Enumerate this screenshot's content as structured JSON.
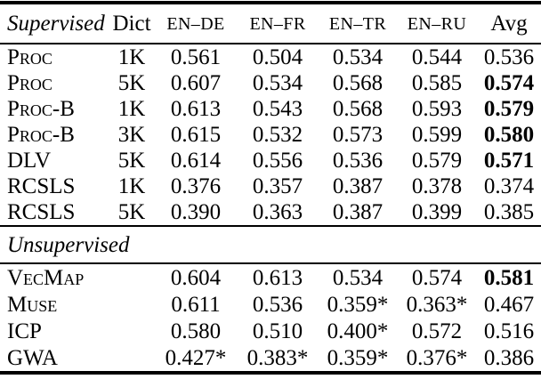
{
  "colors": {
    "text": "#000000",
    "background": "#ffffff",
    "rule": "#000000"
  },
  "table": {
    "header": {
      "section_label": "Supervised",
      "dict": "Dict",
      "pairs": [
        "EN–DE",
        "EN–FR",
        "EN–TR",
        "EN–RU"
      ],
      "avg": "Avg"
    },
    "sup": [
      {
        "method": "Proc",
        "dict": "1K",
        "values": [
          "0.561",
          "0.504",
          "0.534",
          "0.544"
        ],
        "avg": "0.536"
      },
      {
        "method": "Proc",
        "dict": "5K",
        "values": [
          "0.607",
          "0.534",
          "0.568",
          "0.585"
        ],
        "avg": "0.574"
      },
      {
        "method": "Proc-B",
        "dict": "1K",
        "values": [
          "0.613",
          "0.543",
          "0.568",
          "0.593"
        ],
        "avg": "0.579"
      },
      {
        "method": "Proc-B",
        "dict": "3K",
        "values": [
          "0.615",
          "0.532",
          "0.573",
          "0.599"
        ],
        "avg": "0.580"
      },
      {
        "method": "DLV",
        "dict": "5K",
        "values": [
          "0.614",
          "0.556",
          "0.536",
          "0.579"
        ],
        "avg": "0.571"
      },
      {
        "method": "RCSLS",
        "dict": "1K",
        "values": [
          "0.376",
          "0.357",
          "0.387",
          "0.378"
        ],
        "avg": "0.374"
      },
      {
        "method": "RCSLS",
        "dict": "5K",
        "values": [
          "0.390",
          "0.363",
          "0.387",
          "0.399"
        ],
        "avg": "0.385"
      }
    ],
    "unsup_label": "Unsupervised",
    "unsup": [
      {
        "method": "VecMap",
        "dict": "",
        "values": [
          "0.604",
          "0.613",
          "0.534",
          "0.574"
        ],
        "avg": "0.581"
      },
      {
        "method": "Muse",
        "dict": "",
        "values": [
          "0.611",
          "0.536",
          "0.359*",
          "0.363*"
        ],
        "avg": "0.467"
      },
      {
        "method": "ICP",
        "dict": "",
        "values": [
          "0.580",
          "0.510",
          "0.400*",
          "0.572"
        ],
        "avg": "0.516"
      },
      {
        "method": "GWA",
        "dict": "",
        "values": [
          "0.427*",
          "0.383*",
          "0.359*",
          "0.376*"
        ],
        "avg": "0.386"
      }
    ]
  }
}
